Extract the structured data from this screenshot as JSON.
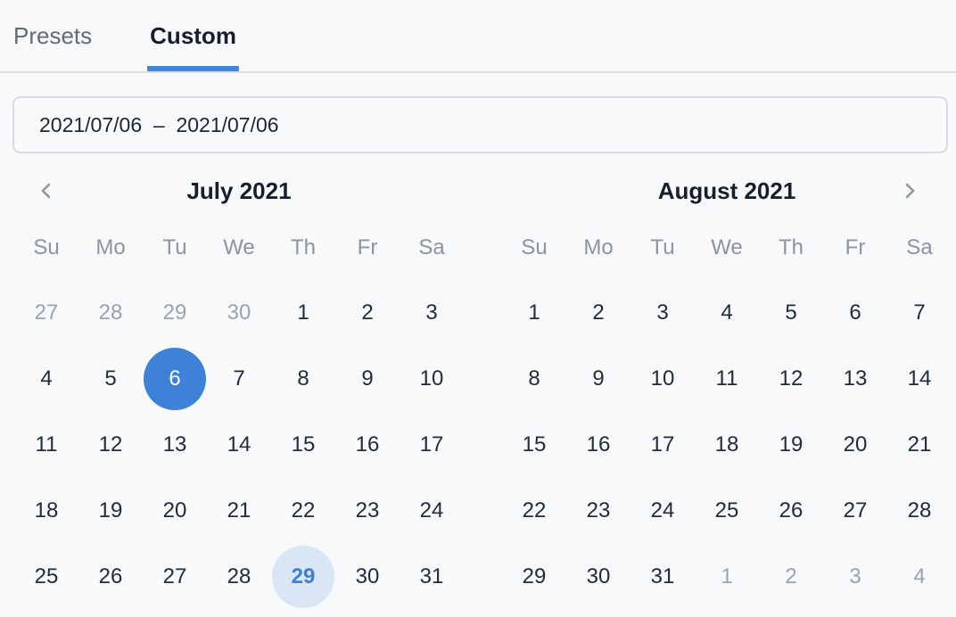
{
  "tab_bar": {
    "tabs": [
      {
        "label": "Presets",
        "active": false
      },
      {
        "label": "Custom",
        "active": true
      }
    ]
  },
  "range_input": {
    "value": "2021/07/06  –  2021/07/06",
    "start_date": "2021/07/06",
    "end_date": "2021/07/06"
  },
  "navigation": {
    "prev_icon": "chevron-left",
    "next_icon": "chevron-right"
  },
  "weekdays": [
    "Su",
    "Mo",
    "Tu",
    "We",
    "Th",
    "Fr",
    "Sa"
  ],
  "months": [
    {
      "title": "July 2021",
      "weeks": [
        [
          {
            "d": "27",
            "state": "muted"
          },
          {
            "d": "28",
            "state": "muted"
          },
          {
            "d": "29",
            "state": "muted"
          },
          {
            "d": "30",
            "state": "muted"
          },
          {
            "d": "1",
            "state": "normal"
          },
          {
            "d": "2",
            "state": "normal"
          },
          {
            "d": "3",
            "state": "normal"
          }
        ],
        [
          {
            "d": "4",
            "state": "normal"
          },
          {
            "d": "5",
            "state": "normal"
          },
          {
            "d": "6",
            "state": "selected"
          },
          {
            "d": "7",
            "state": "normal"
          },
          {
            "d": "8",
            "state": "normal"
          },
          {
            "d": "9",
            "state": "normal"
          },
          {
            "d": "10",
            "state": "normal"
          }
        ],
        [
          {
            "d": "11",
            "state": "normal"
          },
          {
            "d": "12",
            "state": "normal"
          },
          {
            "d": "13",
            "state": "normal"
          },
          {
            "d": "14",
            "state": "normal"
          },
          {
            "d": "15",
            "state": "normal"
          },
          {
            "d": "16",
            "state": "normal"
          },
          {
            "d": "17",
            "state": "normal"
          }
        ],
        [
          {
            "d": "18",
            "state": "normal"
          },
          {
            "d": "19",
            "state": "normal"
          },
          {
            "d": "20",
            "state": "normal"
          },
          {
            "d": "21",
            "state": "normal"
          },
          {
            "d": "22",
            "state": "normal"
          },
          {
            "d": "23",
            "state": "normal"
          },
          {
            "d": "24",
            "state": "normal"
          }
        ],
        [
          {
            "d": "25",
            "state": "normal"
          },
          {
            "d": "26",
            "state": "normal"
          },
          {
            "d": "27",
            "state": "normal"
          },
          {
            "d": "28",
            "state": "normal"
          },
          {
            "d": "29",
            "state": "today"
          },
          {
            "d": "30",
            "state": "normal"
          },
          {
            "d": "31",
            "state": "normal"
          }
        ]
      ]
    },
    {
      "title": "August 2021",
      "weeks": [
        [
          {
            "d": "1",
            "state": "normal"
          },
          {
            "d": "2",
            "state": "normal"
          },
          {
            "d": "3",
            "state": "normal"
          },
          {
            "d": "4",
            "state": "normal"
          },
          {
            "d": "5",
            "state": "normal"
          },
          {
            "d": "6",
            "state": "normal"
          },
          {
            "d": "7",
            "state": "normal"
          }
        ],
        [
          {
            "d": "8",
            "state": "normal"
          },
          {
            "d": "9",
            "state": "normal"
          },
          {
            "d": "10",
            "state": "normal"
          },
          {
            "d": "11",
            "state": "normal"
          },
          {
            "d": "12",
            "state": "normal"
          },
          {
            "d": "13",
            "state": "normal"
          },
          {
            "d": "14",
            "state": "normal"
          }
        ],
        [
          {
            "d": "15",
            "state": "normal"
          },
          {
            "d": "16",
            "state": "normal"
          },
          {
            "d": "17",
            "state": "normal"
          },
          {
            "d": "18",
            "state": "normal"
          },
          {
            "d": "19",
            "state": "normal"
          },
          {
            "d": "20",
            "state": "normal"
          },
          {
            "d": "21",
            "state": "normal"
          }
        ],
        [
          {
            "d": "22",
            "state": "normal"
          },
          {
            "d": "23",
            "state": "normal"
          },
          {
            "d": "24",
            "state": "normal"
          },
          {
            "d": "25",
            "state": "normal"
          },
          {
            "d": "26",
            "state": "normal"
          },
          {
            "d": "27",
            "state": "normal"
          },
          {
            "d": "28",
            "state": "normal"
          }
        ],
        [
          {
            "d": "29",
            "state": "normal"
          },
          {
            "d": "30",
            "state": "normal"
          },
          {
            "d": "31",
            "state": "normal"
          },
          {
            "d": "1",
            "state": "muted"
          },
          {
            "d": "2",
            "state": "muted"
          },
          {
            "d": "3",
            "state": "muted"
          },
          {
            "d": "4",
            "state": "muted"
          }
        ]
      ]
    }
  ],
  "colors": {
    "selected_circle": "#3d82d8",
    "selected_text": "#ffffff",
    "today_circle": "#d9e6f6",
    "today_text": "#3c80d4",
    "tab_underline": "#4285d8",
    "muted_day": "#9aa3ac",
    "day_text": "#212c39",
    "weekday_text": "#8b959d",
    "background": "#f8f9fa"
  }
}
